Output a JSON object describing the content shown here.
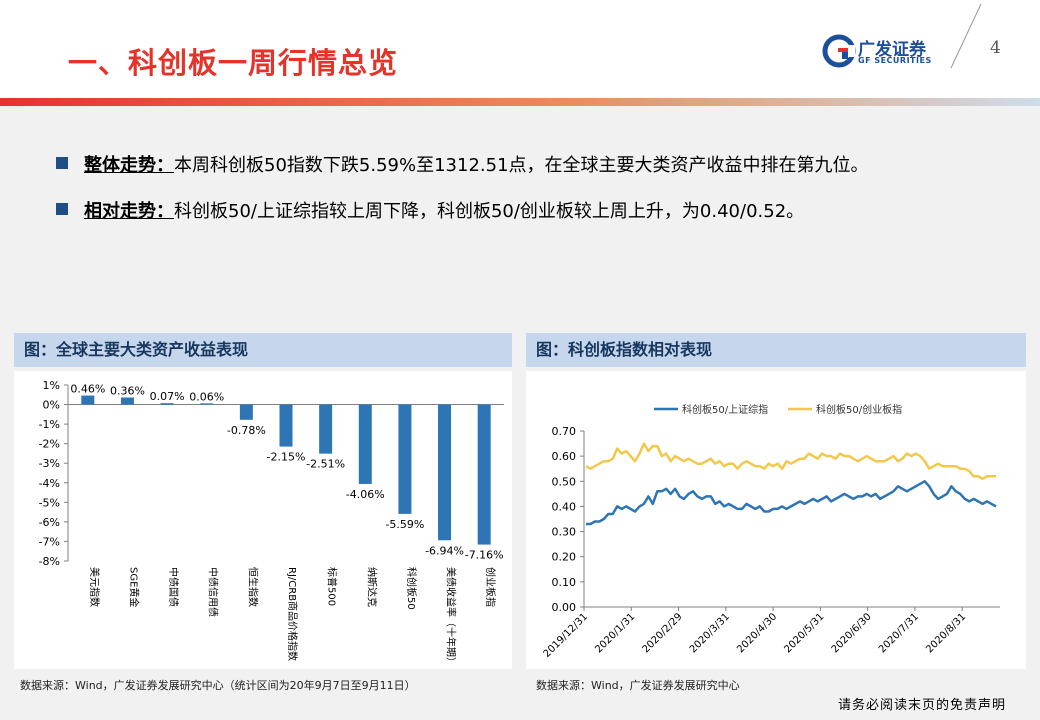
{
  "page": {
    "title": "一、科创板一周行情总览",
    "page_number": "4",
    "logo_cn": "广发证券",
    "logo_en": "GF SECURITIES",
    "footer": "请务必阅读末页的免责声明"
  },
  "bullets": [
    {
      "key": "整体走势：",
      "text": "本周科创板50指数下跌5.59%至1312.51点，在全球主要大类资产收益中排在第九位。"
    },
    {
      "key": "相对走势：",
      "text": "科创板50/上证综指较上周下降，科创板50/创业板较上周上升，为0.40/0.52。"
    }
  ],
  "left_panel": {
    "title": "图：全球主要大类资产收益表现",
    "source": "数据来源：Wind，广发证券发展研究中心（统计区间为20年9月7日至9月11日）"
  },
  "right_panel": {
    "title": "图：科创板指数相对表现",
    "source": "数据来源：Wind，广发证券发展研究中心"
  },
  "colors": {
    "bar": "#2e75b6",
    "line1": "#2e75b6",
    "line2": "#f2c84b",
    "title_red": "#e5332a",
    "panel_blue": "#c6d6ec"
  },
  "chart_data": [
    {
      "type": "bar",
      "categories": [
        "美元指数",
        "SGE黄金",
        "中债国债",
        "中债信用债",
        "恒生指数",
        "RJ/CRB商品价格指数",
        "标普500",
        "纳斯达克",
        "科创板50",
        "美债收益率（十年期）",
        "创业板指"
      ],
      "values": [
        0.46,
        0.36,
        0.07,
        0.06,
        -0.78,
        -2.15,
        -2.51,
        -4.06,
        -5.59,
        -6.94,
        -7.16
      ],
      "data_labels": [
        "0.46%",
        "0.36%",
        "0.07%",
        "0.06%",
        "-0.78%",
        "-2.15%",
        "-2.51%",
        "-4.06%",
        "-5.59%",
        "-6.94%",
        "-7.16%"
      ],
      "ylim": [
        -8,
        1
      ],
      "yticks": [
        "1%",
        "0%",
        "-1%",
        "-2%",
        "-3%",
        "-4%",
        "-5%",
        "-6%",
        "-7%",
        "-8%"
      ],
      "grid": false
    },
    {
      "type": "line",
      "ylim": [
        0,
        0.7
      ],
      "yticks": [
        "0.70",
        "0.60",
        "0.50",
        "0.40",
        "0.30",
        "0.20",
        "0.10",
        "0.00"
      ],
      "xticks": [
        "2019/12/31",
        "2020/1/31",
        "2020/2/29",
        "2020/3/31",
        "2020/4/30",
        "2020/5/31",
        "2020/6/30",
        "2020/7/31",
        "2020/8/31"
      ],
      "legend_position": "top",
      "grid": false,
      "series": [
        {
          "name": "科创板50/上证综指",
          "values": [
            0.33,
            0.33,
            0.34,
            0.34,
            0.35,
            0.37,
            0.37,
            0.4,
            0.39,
            0.4,
            0.39,
            0.38,
            0.4,
            0.41,
            0.44,
            0.41,
            0.46,
            0.46,
            0.47,
            0.45,
            0.47,
            0.44,
            0.43,
            0.45,
            0.46,
            0.44,
            0.43,
            0.44,
            0.44,
            0.41,
            0.42,
            0.4,
            0.41,
            0.4,
            0.39,
            0.39,
            0.41,
            0.4,
            0.39,
            0.4,
            0.38,
            0.38,
            0.39,
            0.39,
            0.4,
            0.39,
            0.4,
            0.41,
            0.42,
            0.41,
            0.42,
            0.43,
            0.42,
            0.43,
            0.44,
            0.42,
            0.43,
            0.44,
            0.45,
            0.44,
            0.43,
            0.44,
            0.44,
            0.45,
            0.44,
            0.45,
            0.43,
            0.44,
            0.45,
            0.46,
            0.48,
            0.47,
            0.46,
            0.47,
            0.48,
            0.49,
            0.5,
            0.48,
            0.45,
            0.43,
            0.44,
            0.45,
            0.48,
            0.46,
            0.45,
            0.43,
            0.42,
            0.43,
            0.42,
            0.41,
            0.42,
            0.41,
            0.4
          ]
        },
        {
          "name": "科创板50/创业板指",
          "values": [
            0.56,
            0.55,
            0.56,
            0.57,
            0.58,
            0.58,
            0.59,
            0.63,
            0.61,
            0.62,
            0.6,
            0.58,
            0.61,
            0.65,
            0.62,
            0.64,
            0.64,
            0.6,
            0.61,
            0.58,
            0.6,
            0.59,
            0.58,
            0.59,
            0.58,
            0.57,
            0.57,
            0.58,
            0.59,
            0.57,
            0.58,
            0.56,
            0.57,
            0.57,
            0.55,
            0.57,
            0.58,
            0.57,
            0.56,
            0.56,
            0.55,
            0.57,
            0.56,
            0.57,
            0.55,
            0.58,
            0.57,
            0.58,
            0.59,
            0.59,
            0.61,
            0.6,
            0.59,
            0.61,
            0.6,
            0.6,
            0.59,
            0.61,
            0.6,
            0.6,
            0.59,
            0.58,
            0.59,
            0.6,
            0.59,
            0.58,
            0.58,
            0.58,
            0.59,
            0.6,
            0.58,
            0.59,
            0.61,
            0.6,
            0.61,
            0.6,
            0.58,
            0.55,
            0.56,
            0.57,
            0.56,
            0.56,
            0.56,
            0.56,
            0.55,
            0.55,
            0.54,
            0.52,
            0.52,
            0.51,
            0.52,
            0.52,
            0.52
          ]
        }
      ]
    }
  ]
}
